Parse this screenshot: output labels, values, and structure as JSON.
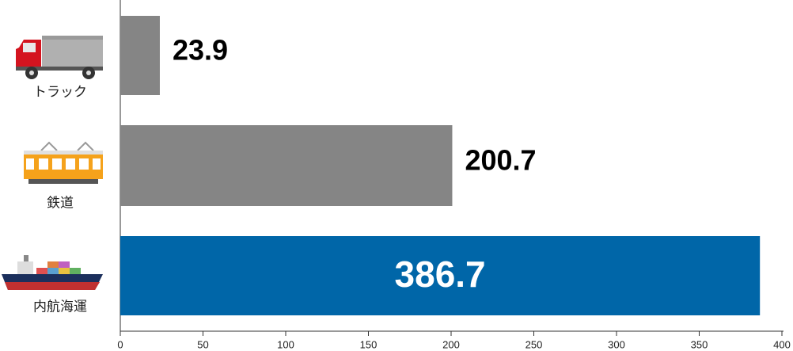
{
  "chart_data": {
    "type": "bar",
    "orientation": "horizontal",
    "categories": [
      "トラック",
      "鉄道",
      "内航海運"
    ],
    "values": [
      23.9,
      200.7,
      386.7
    ],
    "colors": [
      "#858585",
      "#858585",
      "#0066a8"
    ],
    "xlim": [
      0,
      400
    ],
    "xticks": [
      0,
      50,
      100,
      150,
      200,
      250,
      300,
      350,
      400
    ]
  }
}
